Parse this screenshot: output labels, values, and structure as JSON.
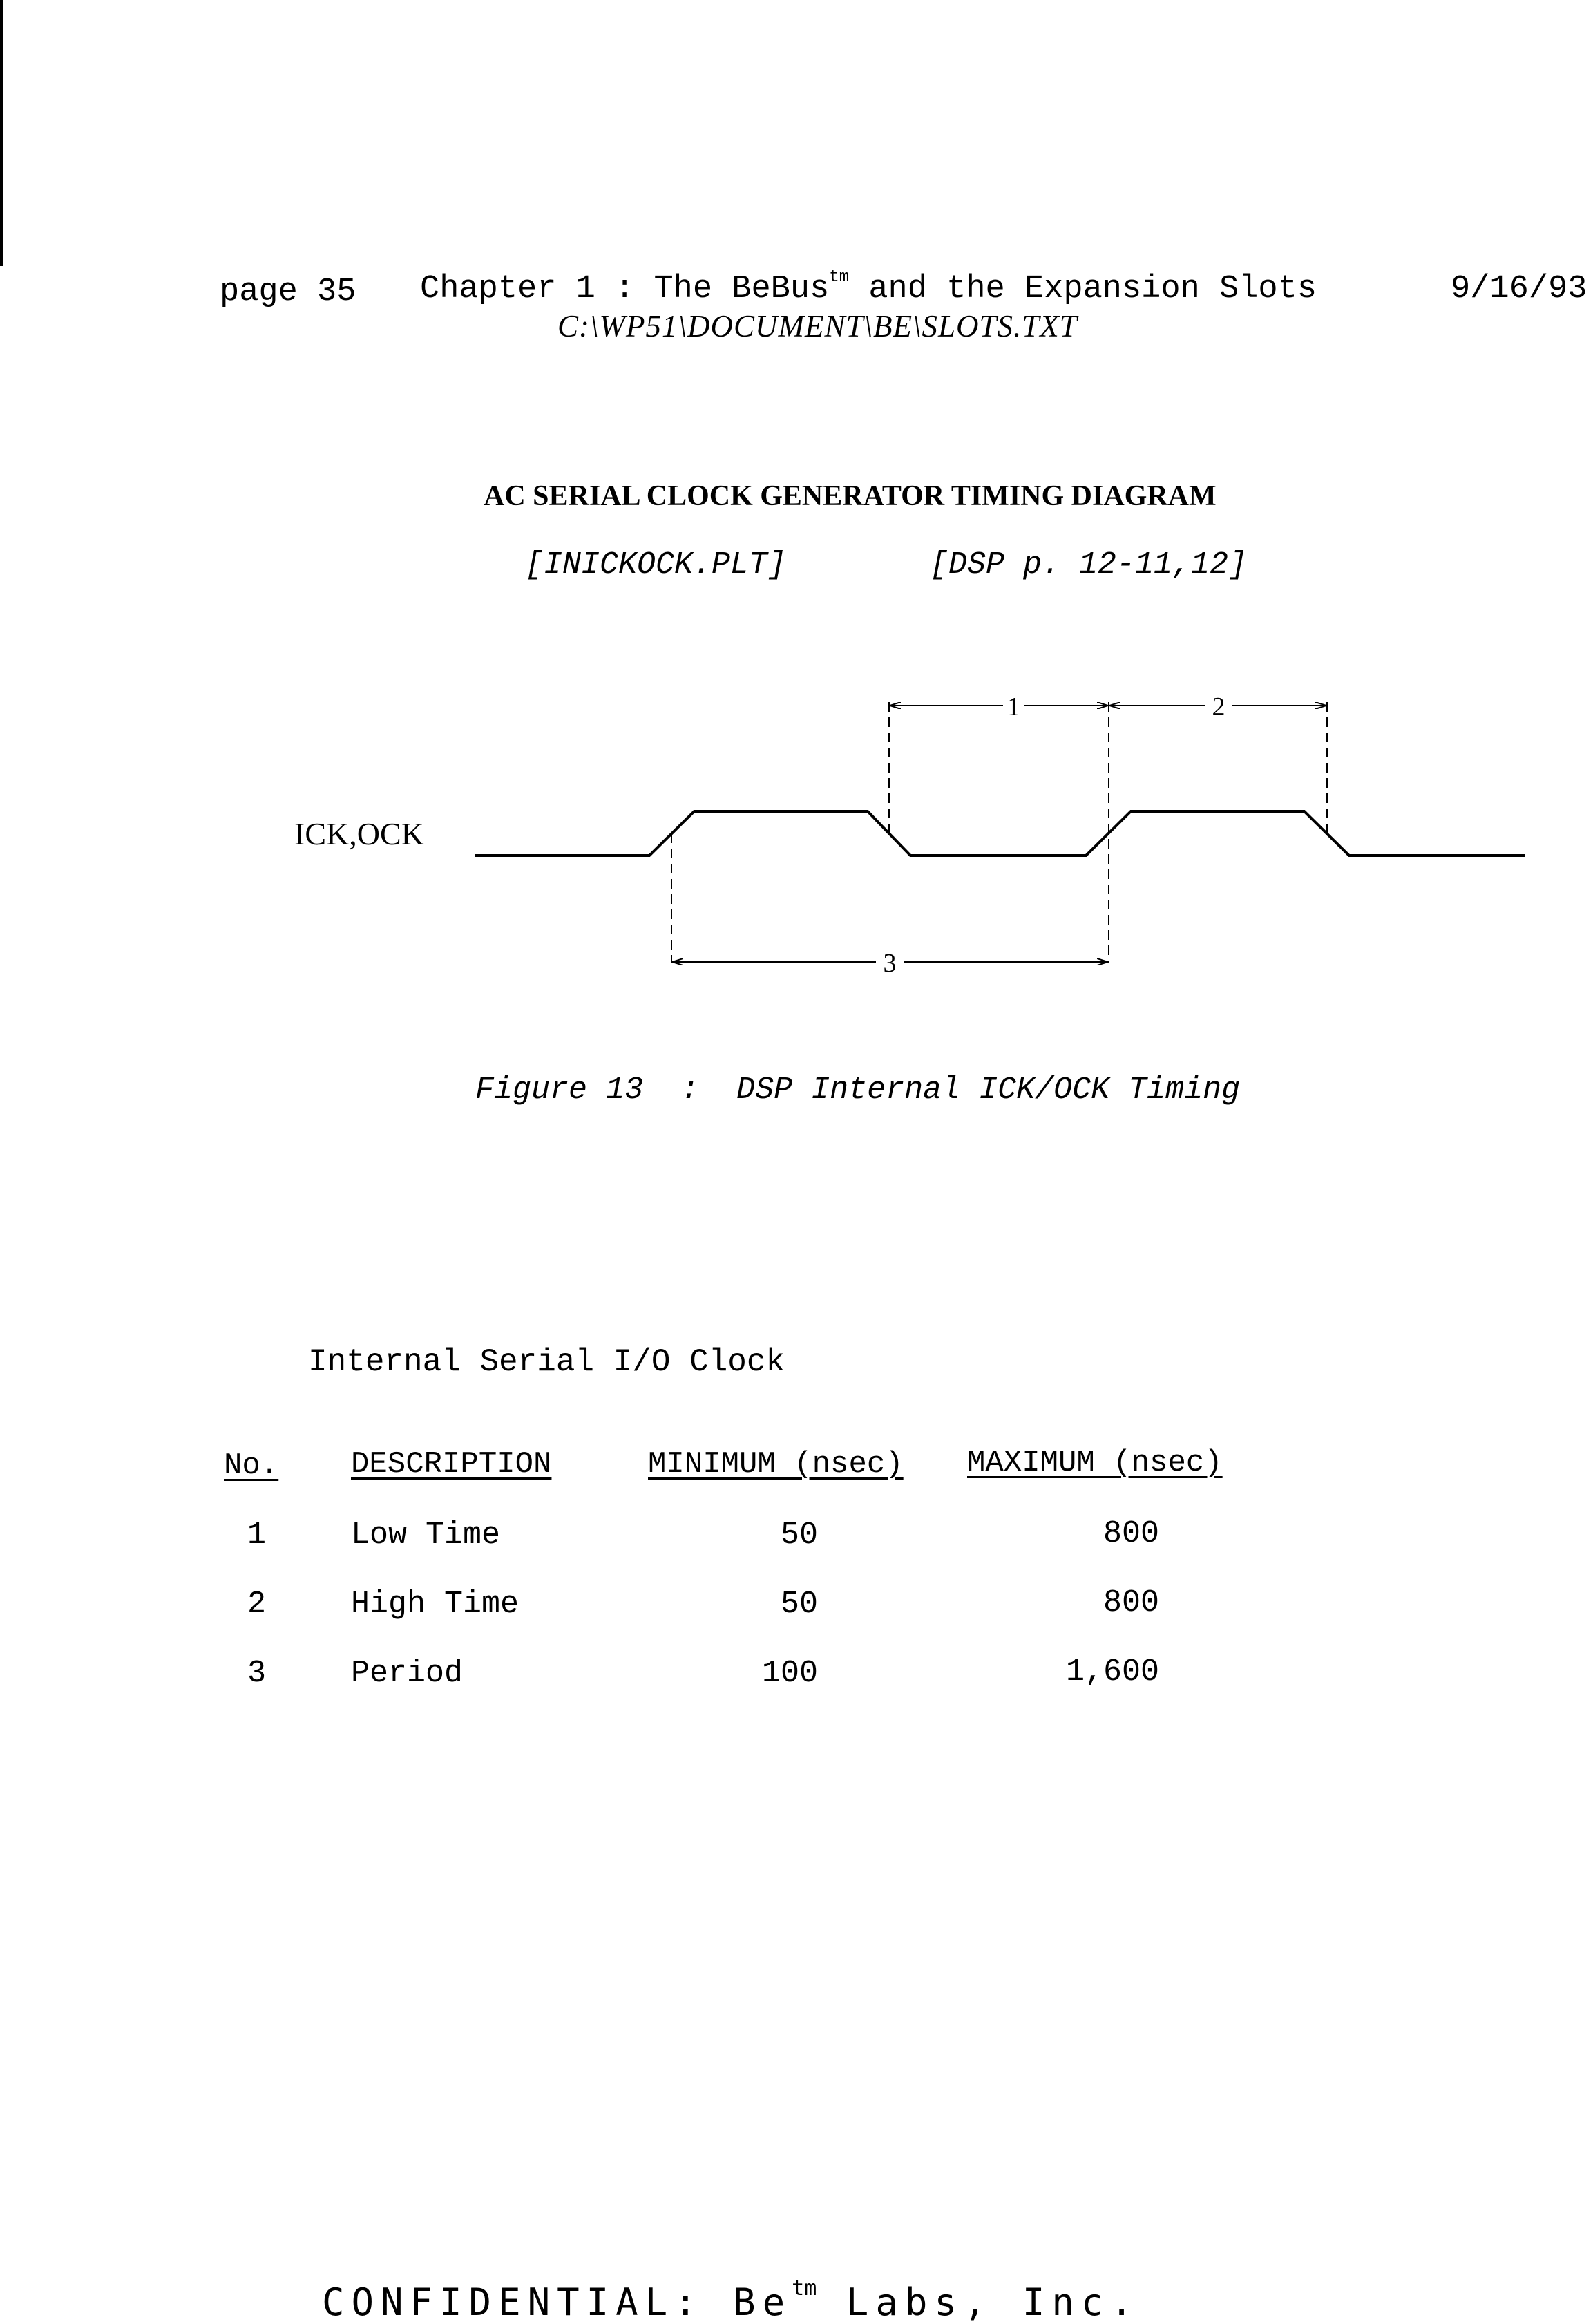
{
  "header": {
    "page": "page 35",
    "chapter_before": "Chapter 1 : The BeBus",
    "chapter_tm": "tm",
    "chapter_after": " and the Expansion Slots",
    "date": "9/16/93",
    "path": "C:\\WP51\\DOCUMENT\\BE\\SLOTS.TXT"
  },
  "diagram": {
    "title": "AC SERIAL CLOCK GENERATOR TIMING DIAGRAM",
    "ref_plot": "[INICKOCK.PLT]",
    "ref_dsp": "[DSP p. 12-11,12]",
    "signal_label": "ICK,OCK",
    "marker_1": "1",
    "marker_2": "2",
    "marker_3": "3",
    "caption": "Figure 13  :  DSP Internal ICK/OCK Timing"
  },
  "table": {
    "heading": "Internal Serial I/O Clock",
    "columns": [
      "No.",
      "DESCRIPTION",
      "MINIMUM (nsec)",
      "MAXIMUM (nsec)"
    ],
    "rows": [
      {
        "no": "1",
        "description": "Low Time",
        "min": "50",
        "max": "800"
      },
      {
        "no": "2",
        "description": "High Time",
        "min": "50",
        "max": "800"
      },
      {
        "no": "3",
        "description": "Period",
        "min": "100",
        "max": "1,600"
      }
    ]
  },
  "footer": {
    "text_before": "CONFIDENTIAL: Be",
    "tm": "tm",
    "text_after": " Labs, Inc."
  }
}
